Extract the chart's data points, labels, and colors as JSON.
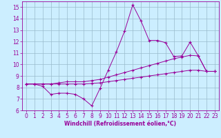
{
  "xlabel": "Windchill (Refroidissement éolien,°C)",
  "ylabel": "",
  "bg_color": "#cceeff",
  "line_color": "#990099",
  "grid_color": "#99bbcc",
  "xlim": [
    -0.5,
    23.5
  ],
  "ylim": [
    6,
    15.5
  ],
  "xticks": [
    0,
    1,
    2,
    3,
    4,
    5,
    6,
    7,
    8,
    9,
    10,
    11,
    12,
    13,
    14,
    15,
    16,
    17,
    18,
    19,
    20,
    21,
    22,
    23
  ],
  "yticks": [
    6,
    7,
    8,
    9,
    10,
    11,
    12,
    13,
    14,
    15
  ],
  "line1_x": [
    0,
    1,
    2,
    3,
    4,
    5,
    6,
    7,
    8,
    9,
    10,
    11,
    12,
    13,
    14,
    15,
    16,
    17,
    18,
    19,
    20,
    21,
    22,
    23
  ],
  "line1_y": [
    8.3,
    8.3,
    8.1,
    7.4,
    7.5,
    7.5,
    7.4,
    7.0,
    6.4,
    7.9,
    9.5,
    11.1,
    12.9,
    15.2,
    13.8,
    12.1,
    12.1,
    11.9,
    10.7,
    10.75,
    11.95,
    10.75,
    9.4,
    9.4
  ],
  "line2_x": [
    0,
    1,
    2,
    3,
    4,
    5,
    6,
    7,
    8,
    9,
    10,
    11,
    12,
    13,
    14,
    15,
    16,
    17,
    18,
    19,
    20,
    21,
    22,
    23
  ],
  "line2_y": [
    8.3,
    8.3,
    8.3,
    8.3,
    8.4,
    8.5,
    8.5,
    8.5,
    8.6,
    8.7,
    8.9,
    9.1,
    9.3,
    9.5,
    9.7,
    9.9,
    10.1,
    10.3,
    10.5,
    10.65,
    10.8,
    10.75,
    9.4,
    9.4
  ],
  "line3_x": [
    0,
    1,
    2,
    3,
    4,
    5,
    6,
    7,
    8,
    9,
    10,
    11,
    12,
    13,
    14,
    15,
    16,
    17,
    18,
    19,
    20,
    21,
    22,
    23
  ],
  "line3_y": [
    8.3,
    8.3,
    8.3,
    8.3,
    8.3,
    8.3,
    8.3,
    8.3,
    8.35,
    8.4,
    8.5,
    8.6,
    8.7,
    8.8,
    8.9,
    9.0,
    9.1,
    9.2,
    9.3,
    9.4,
    9.5,
    9.5,
    9.4,
    9.4
  ],
  "tick_fontsize": 5.5,
  "xlabel_fontsize": 5.5
}
